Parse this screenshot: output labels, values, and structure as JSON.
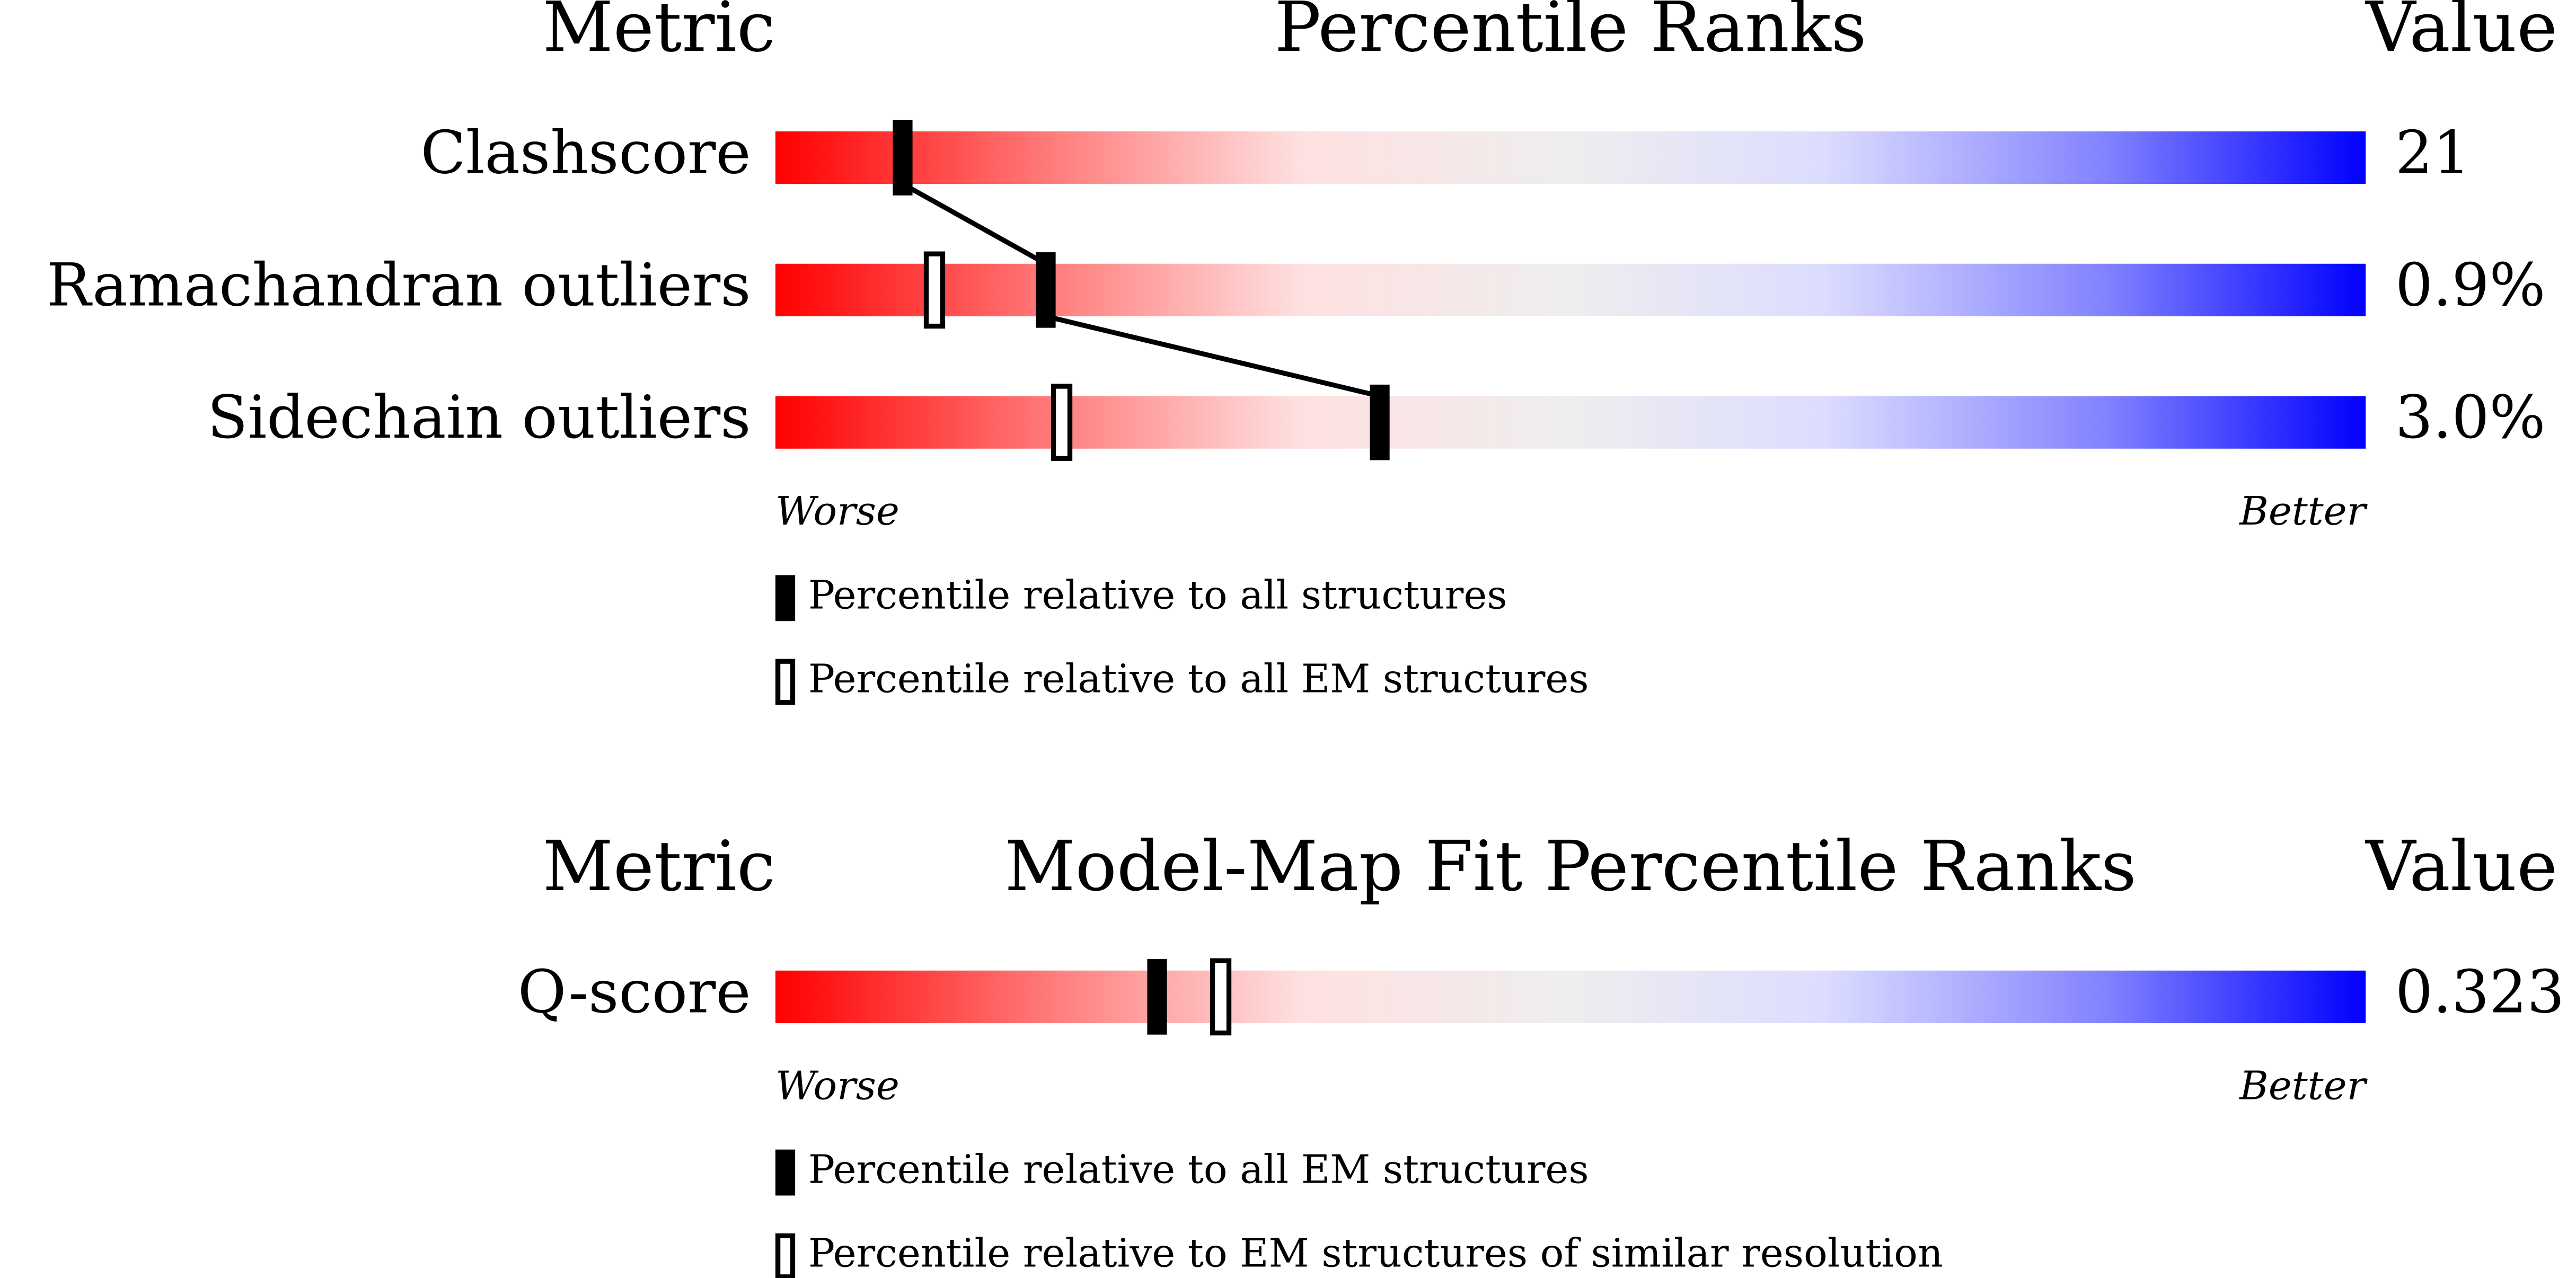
{
  "chart_data": [
    {
      "type": "percentile-slider",
      "title": "Percentile Ranks",
      "metric_header": "Metric",
      "value_header": "Value",
      "categories": [
        "Clashscore",
        "Ramachandran outliers",
        "Sidechain outliers"
      ],
      "metric_values": [
        "21",
        "0.9%",
        "3.0%"
      ],
      "series": [
        {
          "name": "Percentile relative to all structures",
          "style": "filled",
          "values": [
            8,
            17,
            38
          ]
        },
        {
          "name": "Percentile relative to all EM structures",
          "style": "open",
          "values": [
            null,
            10,
            18
          ]
        }
      ],
      "xlim": [
        0,
        100
      ],
      "worse_label": "Worse",
      "better_label": "Better"
    },
    {
      "type": "percentile-slider",
      "title": "Model-Map Fit Percentile Ranks",
      "metric_header": "Metric",
      "value_header": "Value",
      "categories": [
        "Q-score"
      ],
      "metric_values": [
        "0.323"
      ],
      "series": [
        {
          "name": "Percentile relative to all EM structures",
          "style": "filled",
          "values": [
            24
          ]
        },
        {
          "name": "Percentile relative to EM structures of similar resolution",
          "style": "open",
          "values": [
            28
          ]
        }
      ],
      "xlim": [
        0,
        100
      ],
      "worse_label": "Worse",
      "better_label": "Better"
    }
  ]
}
